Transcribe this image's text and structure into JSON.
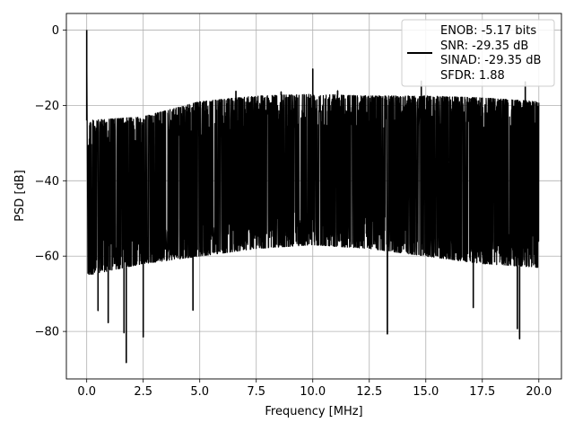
{
  "chart_data": {
    "type": "line",
    "title": "",
    "xlabel": "Frequency [MHz]",
    "ylabel": "PSD [dB]",
    "xlim": [
      -0.9,
      21.0
    ],
    "ylim": [
      -92.6,
      4.4
    ],
    "grid": true,
    "legend_position": "top-right",
    "xticks": [
      0.0,
      2.5,
      5.0,
      7.5,
      10.0,
      12.5,
      15.0,
      17.5,
      20.0
    ],
    "xtick_labels": [
      "0.0",
      "2.5",
      "5.0",
      "7.5",
      "10.0",
      "12.5",
      "15.0",
      "17.5",
      "20.0"
    ],
    "yticks": [
      0,
      -20,
      -40,
      -60,
      -80
    ],
    "ytick_labels": [
      "0",
      "−20",
      "−40",
      "−60",
      "−80"
    ],
    "series": [
      {
        "color": "#000000",
        "x_range": [
          0.0,
          20.0
        ],
        "upper_envelope": [
          [
            0.1,
            -24
          ],
          [
            2.5,
            -23
          ],
          [
            5,
            -19
          ],
          [
            7.5,
            -17.5
          ],
          [
            10,
            -17
          ],
          [
            12.5,
            -17.5
          ],
          [
            15,
            -17.5
          ],
          [
            17.5,
            -18
          ],
          [
            20,
            -19
          ]
        ],
        "lower_envelope": [
          [
            0.1,
            -65
          ],
          [
            2.5,
            -62
          ],
          [
            5,
            -60
          ],
          [
            7.5,
            -58
          ],
          [
            10,
            -57
          ],
          [
            12.5,
            -58
          ],
          [
            15,
            -60
          ],
          [
            17.5,
            -62
          ],
          [
            20,
            -63
          ]
        ],
        "peaks": [
          [
            0.0,
            0.0
          ],
          [
            10.0,
            -10.3
          ],
          [
            14.8,
            -13.5
          ],
          [
            19.4,
            -13.7
          ],
          [
            11.1,
            -16.1
          ],
          [
            6.6,
            -16.2
          ],
          [
            8.6,
            -16.4
          ]
        ],
        "troughs": [
          [
            1.75,
            -88.3
          ],
          [
            2.5,
            -81.5
          ],
          [
            1.65,
            -80.4
          ],
          [
            13.3,
            -80.7
          ],
          [
            19.15,
            -82.0
          ],
          [
            19.05,
            -79.3
          ],
          [
            0.5,
            -74.5
          ],
          [
            0.95,
            -77.7
          ],
          [
            4.7,
            -74.4
          ],
          [
            17.1,
            -73.7
          ]
        ]
      }
    ]
  },
  "legend": {
    "line1": "ENOB: -5.17 bits",
    "line2": "SNR: -29.35 dB",
    "line3": "SINAD: -29.35 dB",
    "line4": "SFDR: 1.88"
  },
  "colors": {
    "grid": "#b0b0b0",
    "line": "#000000",
    "legend_border": "#cccccc"
  }
}
